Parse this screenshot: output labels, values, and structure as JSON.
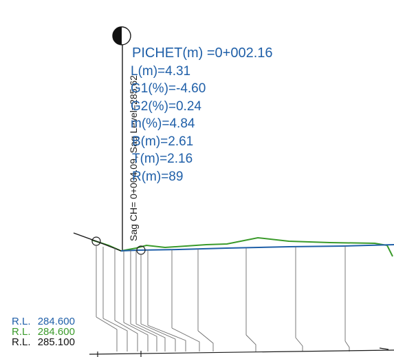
{
  "curve_info": {
    "pichet": "PICHET(m) =0+002.16",
    "l": "L(m)=4.31",
    "g1": "G1(%)=-4.60",
    "g2": "G2(%)=0.24",
    "m": "m(%)=4.84",
    "b": "B(m)=2.61",
    "t": "T(m)=2.16",
    "r": "R(m)=89"
  },
  "sag_label": "Sag CH= 0+004.09, Sag Level=285.62",
  "reduced_levels": [
    {
      "prefix": "R.L.",
      "value": "284.600",
      "color": "#1f5fa8"
    },
    {
      "prefix": "R.L.",
      "value": "284.600",
      "color": "#3a9a2a"
    },
    {
      "prefix": "R.L.",
      "value": "285.100",
      "color": "#111111"
    }
  ],
  "colors": {
    "design_line": "#1f5fa8",
    "ground_line": "#3a9a2a",
    "text_blue": "#1f5fa8",
    "ink": "#1a1a1a"
  }
}
